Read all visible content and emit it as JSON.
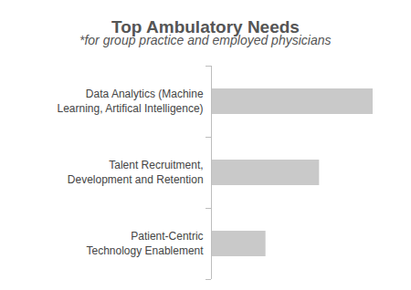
{
  "chart_data": {
    "type": "bar",
    "title": "Top Ambulatory Needs",
    "subtitle": "*for group practice and employed physicians",
    "categories": [
      "Data Analytics (Machine\nLearning, Artifical Intelligence)",
      "Talent Recruitment,\nDevelopment and Retention",
      "Patient-Centric\nTechnology Enablement"
    ],
    "values": [
      3,
      2,
      1
    ],
    "color": "#c9c9c9",
    "orientation": "horizontal",
    "xlim": [
      0,
      3
    ],
    "grid": false,
    "tick_labels": "y"
  }
}
